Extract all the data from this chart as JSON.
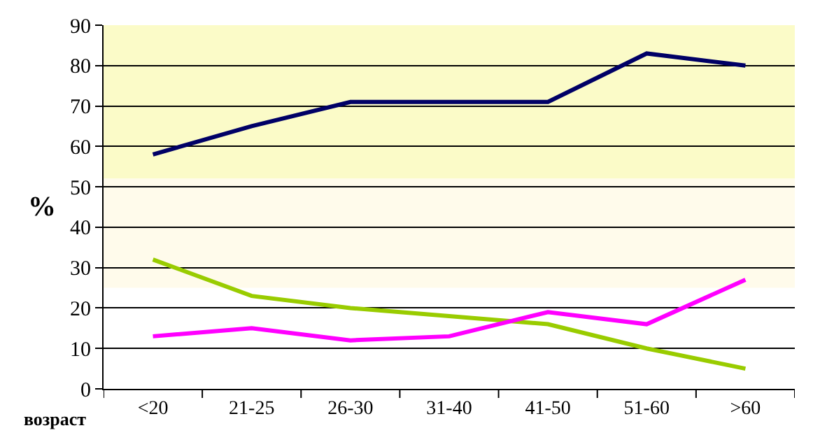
{
  "chart_data": {
    "type": "line",
    "ylabel": "%",
    "xlabel": "возраст",
    "categories": [
      "<20",
      "21-25",
      "26-30",
      "31-40",
      "41-50",
      "51-60",
      ">60"
    ],
    "series": [
      {
        "color": "#000066",
        "values": [
          58,
          65,
          71,
          71,
          71,
          83,
          80
        ]
      },
      {
        "color": "#99cc00",
        "values": [
          32,
          23,
          20,
          18,
          16,
          10,
          5
        ]
      },
      {
        "color": "#ff00ff",
        "values": [
          13,
          15,
          12,
          13,
          19,
          16,
          27
        ]
      }
    ],
    "ylim": [
      0,
      90
    ],
    "yticks": [
      0,
      10,
      20,
      30,
      40,
      50,
      60,
      70,
      80,
      90
    ],
    "grid": "y",
    "marker": "none",
    "line_style": "solid",
    "bands": [
      {
        "axis": "y",
        "from": 52,
        "to": 90,
        "color": "#fbfbc8"
      },
      {
        "axis": "y",
        "from": 25,
        "to": 52,
        "color": "#fffbeb"
      }
    ]
  }
}
